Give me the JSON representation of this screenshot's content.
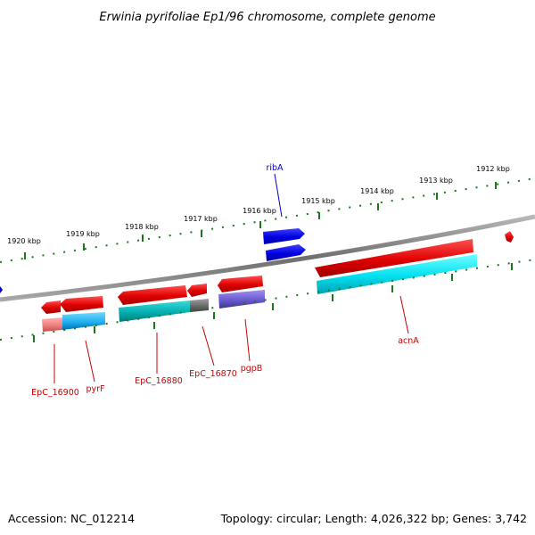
{
  "title": "Erwinia pyrifoliae Ep1/96 chromosome, complete genome",
  "footer": {
    "accession": "Accession: NC_012214",
    "summary": "Topology: circular; Length: 4,026,322 bp; Genes: 3,742"
  },
  "scale_labels": [
    "1920 kbp",
    "1919 kbp",
    "1918 kbp",
    "1917 kbp",
    "1916 kbp",
    "1915 kbp",
    "1914 kbp",
    "1913 kbp",
    "1912 kbp"
  ],
  "gene_labels": [
    {
      "text": "ribA",
      "color": "#0000cc"
    },
    {
      "text": "EpC_16900",
      "color": "#cc0000"
    },
    {
      "text": "pyrF",
      "color": "#cc0000"
    },
    {
      "text": "EpC_16880",
      "color": "#cc0000"
    },
    {
      "text": "EpC_16870",
      "color": "#cc0000"
    },
    {
      "text": "pgpB",
      "color": "#cc0000"
    },
    {
      "text": "acnA",
      "color": "#cc0000"
    }
  ],
  "colors": {
    "backbone": "#8a8a8a",
    "tick": "#1a7a1a",
    "gene_red": "#e00000",
    "gene_blue": "#0000e0",
    "cds_cyan": "#00e0f0",
    "cds_teal": "#00b8b8",
    "cds_grey": "#707070",
    "cds_purple": "#6a5acd",
    "cds_salmon": "#f08080",
    "cds_sky": "#20b0f0"
  }
}
